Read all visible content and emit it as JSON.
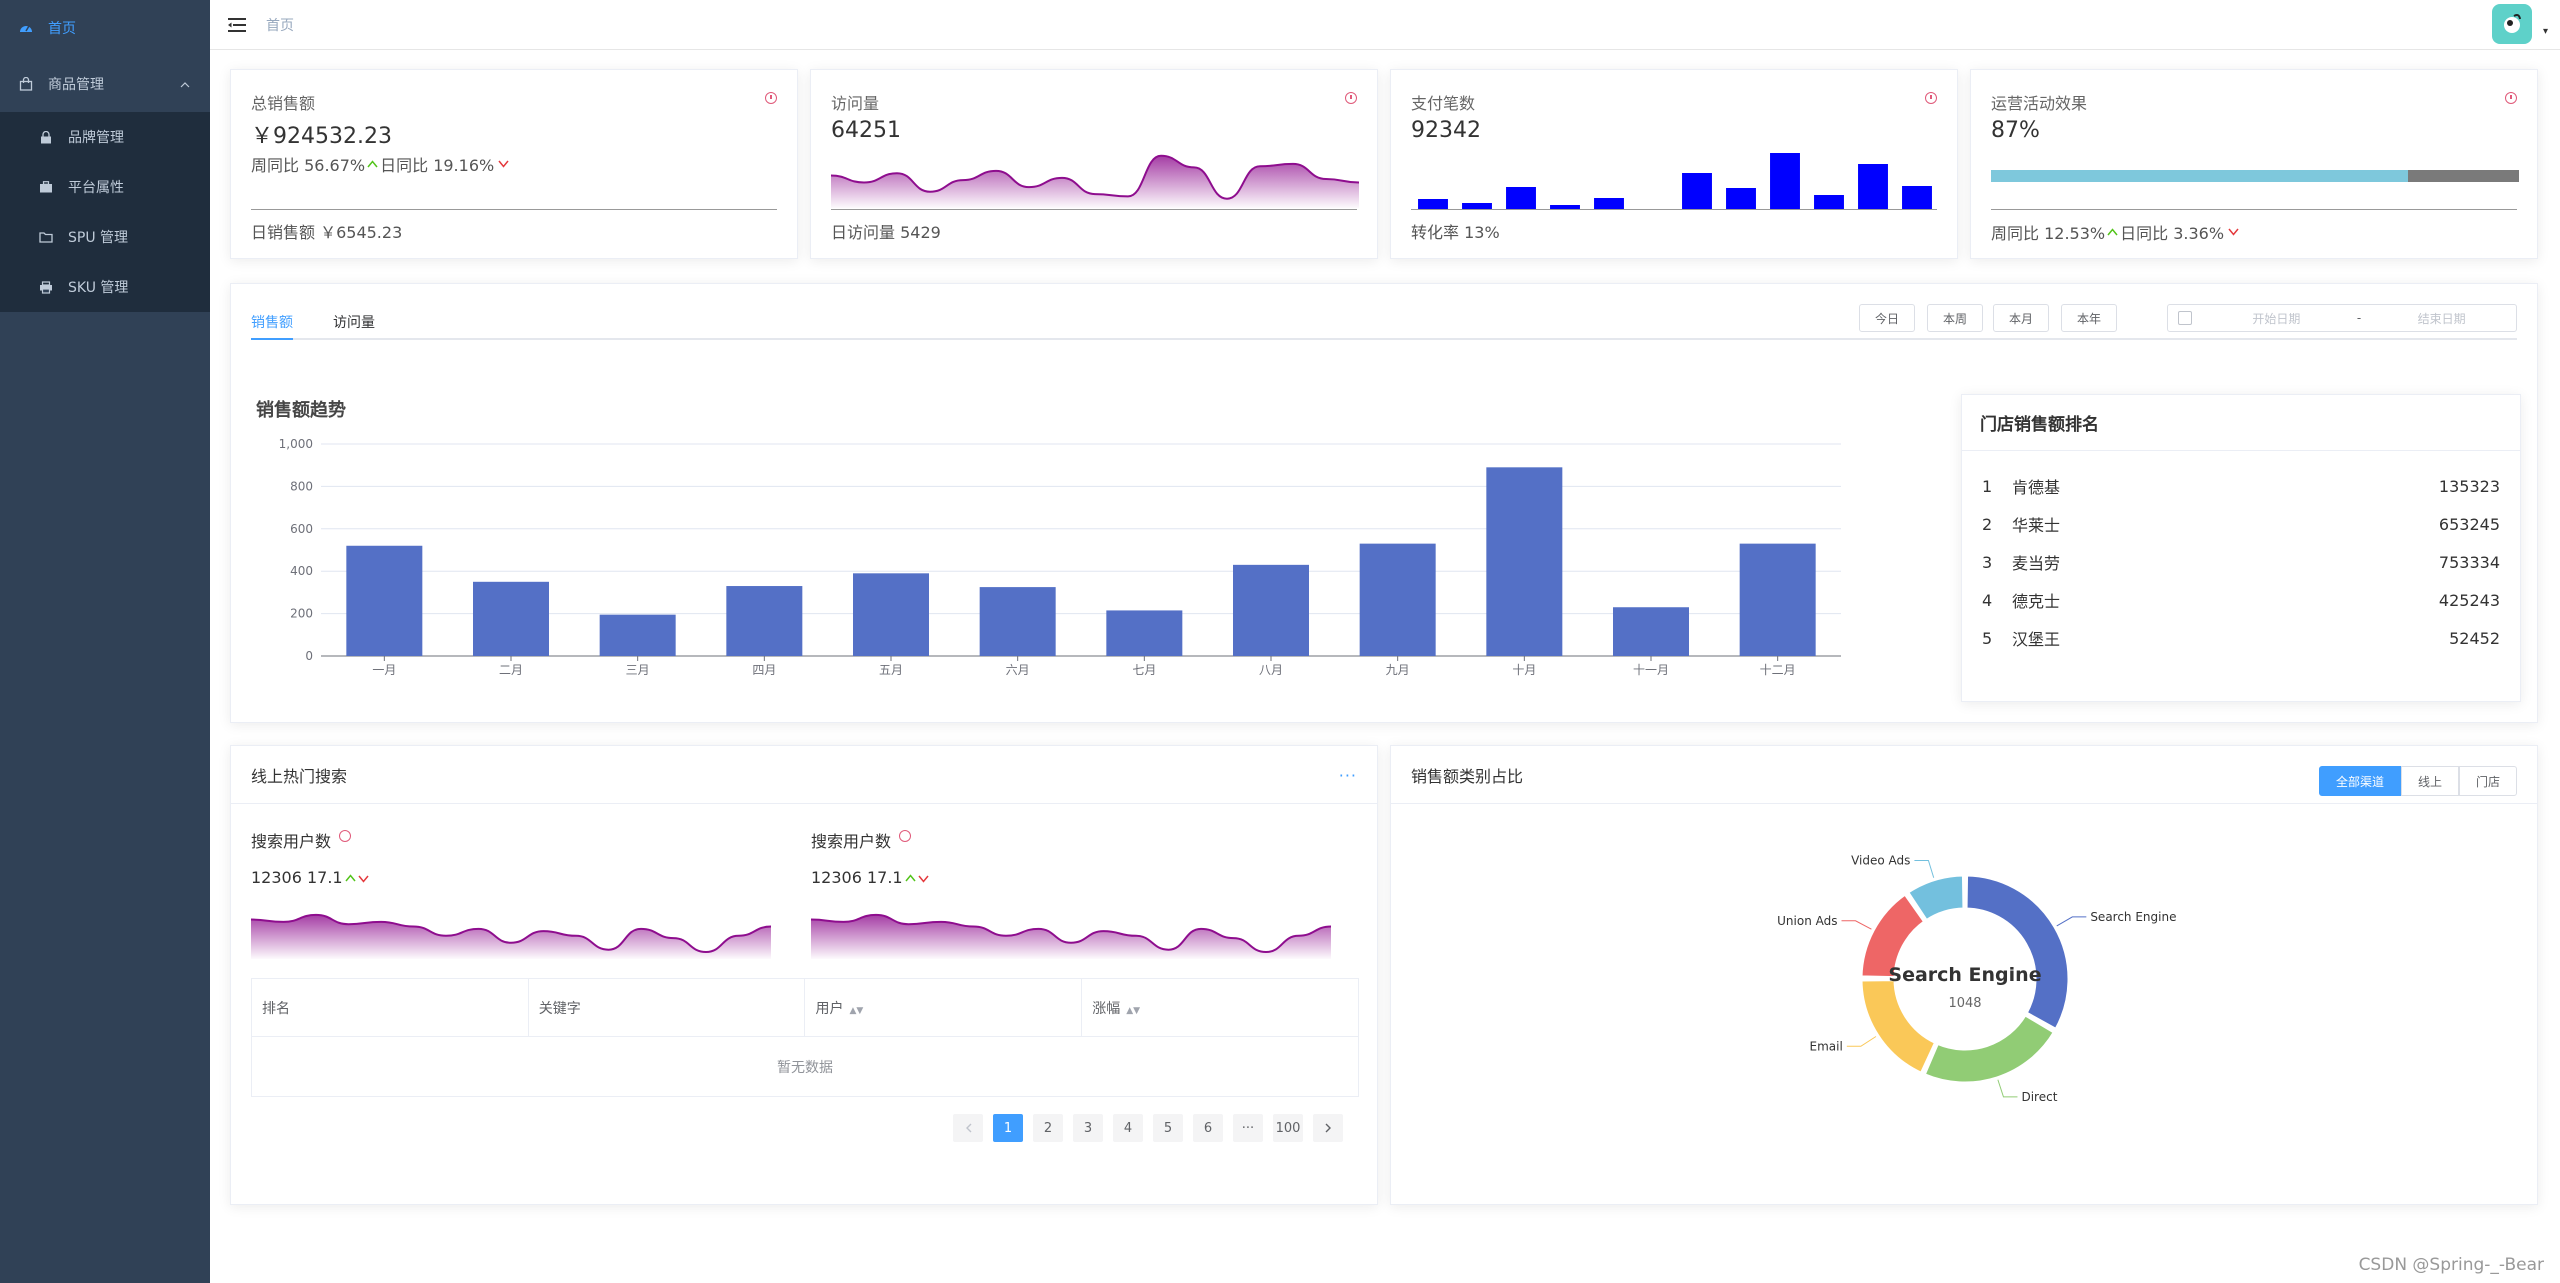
{
  "sidebar": {
    "home": "首页",
    "goods": "商品管理",
    "items": [
      "品牌管理",
      "平台属性",
      "SPU 管理",
      "SKU 管理"
    ]
  },
  "header": {
    "breadcrumb": "首页"
  },
  "stats": [
    {
      "title": "总销售额",
      "value": "￥924532.23",
      "week_label": "周同比 56.67%",
      "day_label": "日同比 19.16%",
      "footer": "日销售额 ￥6545.23"
    },
    {
      "title": "访问量",
      "value": "64251",
      "footer": "日访问量 5429"
    },
    {
      "title": "支付笔数",
      "value": "92342",
      "footer": "转化率 13%"
    },
    {
      "title": "运营活动效果",
      "value": "87%",
      "week_label": "周同比 12.53%",
      "day_label": "日同比 3.36%",
      "progress": 0.79
    }
  ],
  "payments_bars": [
    11,
    7,
    23,
    5,
    12,
    1,
    37,
    22,
    57,
    15,
    46,
    24
  ],
  "visit_wave": [
    28,
    22,
    30,
    14,
    24,
    32,
    18,
    26,
    12,
    10,
    45,
    35,
    8,
    36,
    38,
    25,
    22
  ],
  "colors": {
    "accent": "#409eff",
    "bar": "#5470c6",
    "pay_bar": "#0000ff",
    "wave": "#8e0d8e",
    "sidebar": "#304156"
  },
  "sales": {
    "tabs": [
      "销售额",
      "访问量"
    ],
    "buttons": [
      "今日",
      "本周",
      "本月",
      "本年"
    ],
    "start_placeholder": "开始日期",
    "end_placeholder": "结束日期",
    "sep": "-",
    "chart_title": "销售额趋势",
    "rank_title": "门店销售额排名",
    "ranking": [
      {
        "no": "1",
        "name": "肯德基",
        "value": "135323"
      },
      {
        "no": "2",
        "name": "华莱士",
        "value": "653245"
      },
      {
        "no": "3",
        "name": "麦当劳",
        "value": "753334"
      },
      {
        "no": "4",
        "name": "德克士",
        "value": "425243"
      },
      {
        "no": "5",
        "name": "汉堡王",
        "value": "52452"
      }
    ]
  },
  "chart_data": [
    {
      "type": "bar",
      "title": "销售额趋势",
      "categories": [
        "一月",
        "二月",
        "三月",
        "四月",
        "五月",
        "六月",
        "七月",
        "八月",
        "九月",
        "十月",
        "十一月",
        "十二月"
      ],
      "values": [
        520,
        350,
        195,
        330,
        390,
        325,
        215,
        430,
        530,
        890,
        230,
        530
      ],
      "yticks": [
        "0",
        "200",
        "400",
        "600",
        "800",
        "1,000"
      ],
      "ylim": [
        0,
        1000
      ]
    },
    {
      "type": "pie",
      "center_label": "Search Engine",
      "center_value": "1048",
      "slices": [
        {
          "name": "Search Engine",
          "value": 1048,
          "color": "#5470c6"
        },
        {
          "name": "Direct",
          "value": 735,
          "color": "#91cc75"
        },
        {
          "name": "Email",
          "value": 580,
          "color": "#fac858"
        },
        {
          "name": "Union Ads",
          "value": 484,
          "color": "#ee6666"
        },
        {
          "name": "Video Ads",
          "value": 300,
          "color": "#73c0de"
        }
      ]
    }
  ],
  "search": {
    "title": "线上热门搜索",
    "more": "···",
    "label1": "搜索用户数",
    "label2": "搜索用户数",
    "value1": "12306 17.1",
    "value2": "12306 17.1",
    "columns": [
      "排名",
      "关键字",
      "用户",
      "涨幅"
    ],
    "empty": "暂无数据",
    "pages": [
      "1",
      "2",
      "3",
      "4",
      "5",
      "6",
      "···",
      "100"
    ],
    "wave": [
      34,
      32,
      38,
      30,
      32,
      28,
      20,
      26,
      14,
      24,
      20,
      8,
      26,
      18,
      6,
      20,
      28
    ]
  },
  "category": {
    "title": "销售额类别占比",
    "options": [
      "全部渠道",
      "线上",
      "门店"
    ]
  },
  "watermark": "CSDN @Spring-_-Bear"
}
